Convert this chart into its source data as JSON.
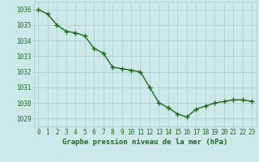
{
  "x": [
    0,
    1,
    2,
    3,
    4,
    5,
    6,
    7,
    8,
    9,
    10,
    11,
    12,
    13,
    14,
    15,
    16,
    17,
    18,
    19,
    20,
    21,
    22,
    23
  ],
  "y": [
    1036.0,
    1035.7,
    1035.0,
    1034.6,
    1034.5,
    1034.3,
    1033.5,
    1033.2,
    1032.3,
    1032.2,
    1032.1,
    1032.0,
    1031.0,
    1030.0,
    1029.7,
    1029.3,
    1029.1,
    1029.6,
    1029.8,
    1030.0,
    1030.1,
    1030.2,
    1030.2,
    1030.1
  ],
  "line_color": "#1a6b1a",
  "marker_color": "#1a6b1a",
  "bg_color": "#cce8e8",
  "grid_color": "#aacccc",
  "text_color": "#1a6b1a",
  "xlabel": "Graphe pression niveau de la mer (hPa)",
  "ylim": [
    1028.5,
    1036.5
  ],
  "yticks": [
    1029,
    1030,
    1031,
    1032,
    1033,
    1034,
    1035,
    1036
  ],
  "xticks": [
    0,
    1,
    2,
    3,
    4,
    5,
    6,
    7,
    8,
    9,
    10,
    11,
    12,
    13,
    14,
    15,
    16,
    17,
    18,
    19,
    20,
    21,
    22,
    23
  ],
  "title_fontsize": 6.5,
  "tick_fontsize": 5.5,
  "line_width": 1.0,
  "marker_size": 4
}
